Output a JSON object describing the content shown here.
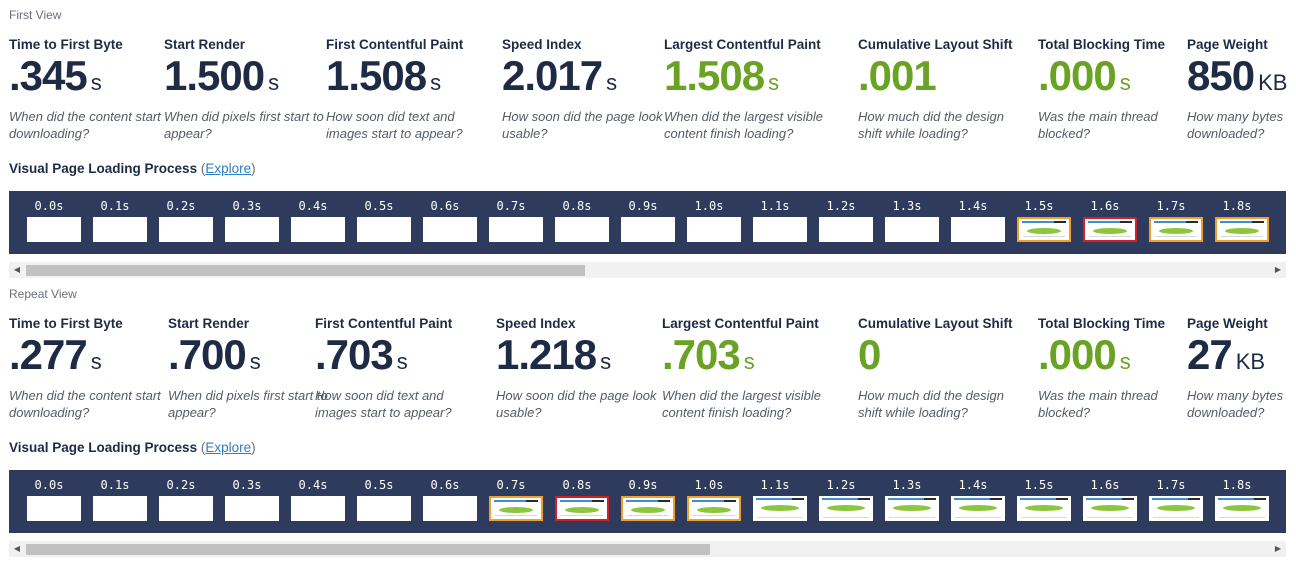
{
  "views": [
    {
      "label": "First View",
      "metrics": [
        {
          "title": "Time to First Byte",
          "value": ".345",
          "unit": "s",
          "desc": "When did the content start downloading?",
          "good": false
        },
        {
          "title": "Start Render",
          "value": "1.500",
          "unit": "s",
          "desc": "When did pixels first start to appear?",
          "good": false
        },
        {
          "title": "First Contentful Paint",
          "value": "1.508",
          "unit": "s",
          "desc": "How soon did text and images start to appear?",
          "good": false
        },
        {
          "title": "Speed Index",
          "value": "2.017",
          "unit": "s",
          "desc": "How soon did the page look usable?",
          "good": false
        },
        {
          "title": "Largest Contentful Paint",
          "value": "1.508",
          "unit": "s",
          "desc": "When did the largest visible content finish loading?",
          "good": true
        },
        {
          "title": "Cumulative Layout Shift",
          "value": ".001",
          "unit": "",
          "desc": "How much did the design shift while loading?",
          "good": true
        },
        {
          "title": "Total Blocking Time",
          "value": ".000",
          "unit": "s",
          "desc": "Was the main thread blocked?",
          "good": true
        },
        {
          "title": "Page Weight",
          "value": "850",
          "unit": "KB",
          "desc": "How many bytes downloaded?",
          "good": false
        }
      ],
      "vplp_label": "Visual Page Loading Process",
      "explore_label": "Explore",
      "frames": [
        {
          "time": "0.0s",
          "state": "blank"
        },
        {
          "time": "0.1s",
          "state": "blank"
        },
        {
          "time": "0.2s",
          "state": "blank"
        },
        {
          "time": "0.3s",
          "state": "blank"
        },
        {
          "time": "0.4s",
          "state": "blank"
        },
        {
          "time": "0.5s",
          "state": "blank"
        },
        {
          "time": "0.6s",
          "state": "blank"
        },
        {
          "time": "0.7s",
          "state": "blank"
        },
        {
          "time": "0.8s",
          "state": "blank"
        },
        {
          "time": "0.9s",
          "state": "blank"
        },
        {
          "time": "1.0s",
          "state": "blank"
        },
        {
          "time": "1.1s",
          "state": "blank"
        },
        {
          "time": "1.2s",
          "state": "blank"
        },
        {
          "time": "1.3s",
          "state": "blank"
        },
        {
          "time": "1.4s",
          "state": "blank"
        },
        {
          "time": "1.5s",
          "state": "orange"
        },
        {
          "time": "1.6s",
          "state": "red"
        },
        {
          "time": "1.7s",
          "state": "orange"
        },
        {
          "time": "1.8s",
          "state": "orange"
        }
      ],
      "scroll_fraction": 0.45
    },
    {
      "label": "Repeat View",
      "metrics": [
        {
          "title": "Time to First Byte",
          "value": ".277",
          "unit": "s",
          "desc": "When did the content start downloading?",
          "good": false
        },
        {
          "title": "Start Render",
          "value": ".700",
          "unit": "s",
          "desc": "When did pixels first start to appear?",
          "good": false
        },
        {
          "title": "First Contentful Paint",
          "value": ".703",
          "unit": "s",
          "desc": "How soon did text and images start to appear?",
          "good": false
        },
        {
          "title": "Speed Index",
          "value": "1.218",
          "unit": "s",
          "desc": "How soon did the page look usable?",
          "good": false
        },
        {
          "title": "Largest Contentful Paint",
          "value": ".703",
          "unit": "s",
          "desc": "When did the largest visible content finish loading?",
          "good": true
        },
        {
          "title": "Cumulative Layout Shift",
          "value": "0",
          "unit": "",
          "desc": "How much did the design shift while loading?",
          "good": true
        },
        {
          "title": "Total Blocking Time",
          "value": ".000",
          "unit": "s",
          "desc": "Was the main thread blocked?",
          "good": true
        },
        {
          "title": "Page Weight",
          "value": "27",
          "unit": "KB",
          "desc": "How many bytes downloaded?",
          "good": false
        }
      ],
      "vplp_label": "Visual Page Loading Process",
      "explore_label": "Explore",
      "frames": [
        {
          "time": "0.0s",
          "state": "blank"
        },
        {
          "time": "0.1s",
          "state": "blank"
        },
        {
          "time": "0.2s",
          "state": "blank"
        },
        {
          "time": "0.3s",
          "state": "blank"
        },
        {
          "time": "0.4s",
          "state": "blank"
        },
        {
          "time": "0.5s",
          "state": "blank"
        },
        {
          "time": "0.6s",
          "state": "blank"
        },
        {
          "time": "0.7s",
          "state": "orange"
        },
        {
          "time": "0.8s",
          "state": "red"
        },
        {
          "time": "0.9s",
          "state": "orange"
        },
        {
          "time": "1.0s",
          "state": "orange"
        },
        {
          "time": "1.1s",
          "state": "done"
        },
        {
          "time": "1.2s",
          "state": "done"
        },
        {
          "time": "1.3s",
          "state": "done"
        },
        {
          "time": "1.4s",
          "state": "done"
        },
        {
          "time": "1.5s",
          "state": "done"
        },
        {
          "time": "1.6s",
          "state": "done"
        },
        {
          "time": "1.7s",
          "state": "done"
        },
        {
          "time": "1.8s",
          "state": "done"
        }
      ],
      "scroll_fraction": 0.55
    }
  ],
  "colors": {
    "navy": "#1f2a44",
    "good": "#6aa324",
    "strip": "#2f3b5c",
    "orange": "#f0a12b",
    "red": "#d32027",
    "link": "#2f7fc4"
  }
}
